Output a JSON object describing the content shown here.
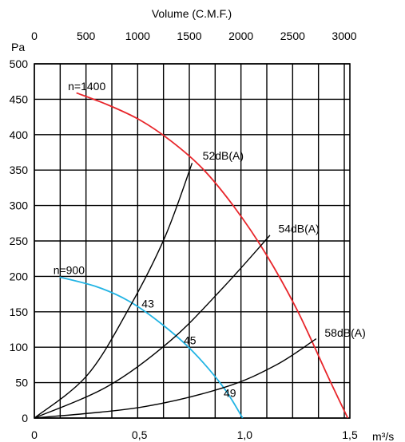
{
  "chart_data": {
    "type": "line",
    "title": "Volume (C.M.F.)",
    "x_axis": {
      "unit": "m³/s",
      "range": [
        0,
        1.5
      ],
      "ticks": [
        0,
        0.5,
        1.0,
        1.5
      ],
      "tick_labels": [
        "0",
        "0,5",
        "1,0",
        "1,5"
      ]
    },
    "x2_axis": {
      "label": "Volume (C.M.F.)",
      "ticks": [
        0,
        500,
        1000,
        1500,
        2000,
        2500,
        3000
      ],
      "tick_labels": [
        "0",
        "500",
        "1000",
        "1500",
        "2000",
        "2500",
        "3000"
      ]
    },
    "y_axis": {
      "unit": "Pa",
      "range": [
        0,
        500
      ],
      "ticks": [
        0,
        50,
        100,
        150,
        200,
        250,
        300,
        350,
        400,
        450,
        500
      ],
      "tick_labels": [
        "0",
        "50",
        "100",
        "150",
        "200",
        "250",
        "300",
        "350",
        "400",
        "450",
        "500"
      ]
    },
    "grid": true,
    "series": [
      {
        "name": "n=1400",
        "color": "#e8262b",
        "x": [
          0.2,
          0.35,
          0.5,
          0.65,
          0.8,
          0.95,
          1.1,
          1.25,
          1.4,
          1.49
        ],
        "y": [
          459,
          442,
          421,
          391,
          352,
          298,
          232,
          152,
          56,
          0
        ]
      },
      {
        "name": "n=900",
        "color": "#22b4e4",
        "x": [
          0.12,
          0.3,
          0.45,
          0.6,
          0.75,
          0.9,
          0.99
        ],
        "y": [
          199,
          185,
          165,
          134,
          95,
          43,
          0
        ]
      },
      {
        "name": "52dB(A)",
        "color": "#000000",
        "x": [
          0,
          0.25,
          0.45,
          0.62,
          0.75
        ],
        "y": [
          0,
          60,
          155,
          255,
          360
        ]
      },
      {
        "name": "54dB(A)",
        "color": "#000000",
        "x": [
          0,
          0.35,
          0.65,
          0.9,
          1.12
        ],
        "y": [
          0,
          45,
          110,
          185,
          258
        ]
      },
      {
        "name": "58dB(A)",
        "color": "#000000",
        "x": [
          0,
          0.5,
          0.9,
          1.15,
          1.34
        ],
        "y": [
          0,
          15,
          43,
          75,
          112
        ]
      }
    ],
    "annotations": [
      {
        "text": "n=1400",
        "x": 0.16,
        "y": 463
      },
      {
        "text": "n=900",
        "x": 0.09,
        "y": 203
      },
      {
        "text": "52dB(A)",
        "x": 0.8,
        "y": 365
      },
      {
        "text": "54dB(A)",
        "x": 1.16,
        "y": 262
      },
      {
        "text": "58dB(A)",
        "x": 1.38,
        "y": 115
      },
      {
        "text": "43",
        "x": 0.51,
        "y": 156
      },
      {
        "text": "45",
        "x": 0.71,
        "y": 104
      },
      {
        "text": "49",
        "x": 0.9,
        "y": 30
      }
    ]
  }
}
